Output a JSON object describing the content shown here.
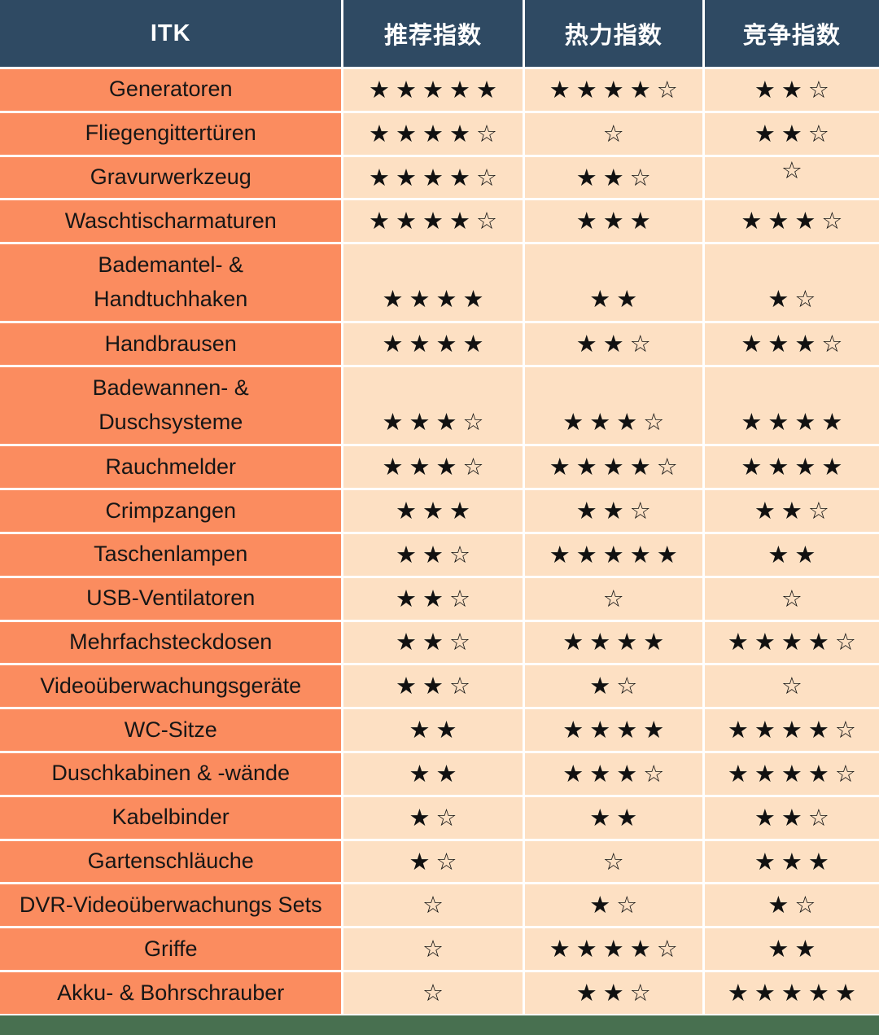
{
  "header": {
    "columns": [
      "ITK",
      "推荐指数",
      "热力指数",
      "竞争指数"
    ]
  },
  "colors": {
    "header_bg": "#2F4A63",
    "header_text": "#FFFFFF",
    "label_bg": "#FB8C5F",
    "label_text": "#161616",
    "cell_bg": "#FDE0C3",
    "star_color": "#111111",
    "footer_bar": "#487050",
    "grid_line": "#FFFFFF"
  },
  "star": {
    "filled_glyph": "★",
    "outline_glyph": "☆"
  },
  "rows": [
    {
      "label": "Generatoren",
      "cells": [
        {
          "filled": 5,
          "outline": 0
        },
        {
          "filled": 4,
          "outline": 1
        },
        {
          "filled": 2,
          "outline": 1
        }
      ]
    },
    {
      "label": "Fliegengittertüren",
      "cells": [
        {
          "filled": 4,
          "outline": 1
        },
        {
          "filled": 0,
          "outline": 1
        },
        {
          "filled": 2,
          "outline": 1
        }
      ]
    },
    {
      "label": "Gravurwerkzeug",
      "cells": [
        {
          "filled": 4,
          "outline": 1
        },
        {
          "filled": 2,
          "outline": 1
        },
        {
          "filled": 0,
          "outline": 1,
          "align": "top"
        }
      ]
    },
    {
      "label": "Waschtischarmaturen",
      "cells": [
        {
          "filled": 4,
          "outline": 1
        },
        {
          "filled": 3,
          "outline": 0
        },
        {
          "filled": 3,
          "outline": 1
        }
      ]
    },
    {
      "label": "Bademantel- &\nHandtuchhaken",
      "tall": true,
      "cells": [
        {
          "filled": 4,
          "outline": 0
        },
        {
          "filled": 2,
          "outline": 0
        },
        {
          "filled": 1,
          "outline": 1
        }
      ]
    },
    {
      "label": "Handbrausen",
      "cells": [
        {
          "filled": 4,
          "outline": 0
        },
        {
          "filled": 2,
          "outline": 1
        },
        {
          "filled": 3,
          "outline": 1
        }
      ]
    },
    {
      "label": "Badewannen- &\nDuschsysteme",
      "tall": true,
      "cells": [
        {
          "filled": 3,
          "outline": 1
        },
        {
          "filled": 3,
          "outline": 1
        },
        {
          "filled": 4,
          "outline": 0
        }
      ]
    },
    {
      "label": "Rauchmelder",
      "cells": [
        {
          "filled": 3,
          "outline": 1
        },
        {
          "filled": 4,
          "outline": 1
        },
        {
          "filled": 4,
          "outline": 0
        }
      ]
    },
    {
      "label": "Crimpzangen",
      "cells": [
        {
          "filled": 3,
          "outline": 0
        },
        {
          "filled": 2,
          "outline": 1
        },
        {
          "filled": 2,
          "outline": 1
        }
      ]
    },
    {
      "label": "Taschenlampen",
      "cells": [
        {
          "filled": 2,
          "outline": 1
        },
        {
          "filled": 5,
          "outline": 0
        },
        {
          "filled": 2,
          "outline": 0
        }
      ]
    },
    {
      "label": "USB-Ventilatoren",
      "cells": [
        {
          "filled": 2,
          "outline": 1
        },
        {
          "filled": 0,
          "outline": 1
        },
        {
          "filled": 0,
          "outline": 1
        }
      ]
    },
    {
      "label": "Mehrfachsteckdosen",
      "cells": [
        {
          "filled": 2,
          "outline": 1
        },
        {
          "filled": 4,
          "outline": 0
        },
        {
          "filled": 4,
          "outline": 1
        }
      ]
    },
    {
      "label": "Videoüberwachungsgeräte",
      "cells": [
        {
          "filled": 2,
          "outline": 1
        },
        {
          "filled": 1,
          "outline": 1
        },
        {
          "filled": 0,
          "outline": 1
        }
      ]
    },
    {
      "label": "WC-Sitze",
      "cells": [
        {
          "filled": 2,
          "outline": 0
        },
        {
          "filled": 4,
          "outline": 0
        },
        {
          "filled": 4,
          "outline": 1
        }
      ]
    },
    {
      "label": "Duschkabinen & -wände",
      "cells": [
        {
          "filled": 2,
          "outline": 0
        },
        {
          "filled": 3,
          "outline": 1
        },
        {
          "filled": 4,
          "outline": 1
        }
      ]
    },
    {
      "label": "Kabelbinder",
      "cells": [
        {
          "filled": 1,
          "outline": 1
        },
        {
          "filled": 2,
          "outline": 0
        },
        {
          "filled": 2,
          "outline": 1
        }
      ]
    },
    {
      "label": "Gartenschläuche",
      "cells": [
        {
          "filled": 1,
          "outline": 1
        },
        {
          "filled": 0,
          "outline": 1
        },
        {
          "filled": 3,
          "outline": 0
        }
      ]
    },
    {
      "label": "DVR-Videoüberwachungs Sets",
      "cells": [
        {
          "filled": 0,
          "outline": 1
        },
        {
          "filled": 1,
          "outline": 1
        },
        {
          "filled": 1,
          "outline": 1
        }
      ]
    },
    {
      "label": "Griffe",
      "cells": [
        {
          "filled": 0,
          "outline": 1
        },
        {
          "filled": 4,
          "outline": 1
        },
        {
          "filled": 2,
          "outline": 0
        }
      ]
    },
    {
      "label": "Akku- & Bohrschrauber",
      "cells": [
        {
          "filled": 0,
          "outline": 1
        },
        {
          "filled": 2,
          "outline": 1
        },
        {
          "filled": 5,
          "outline": 0
        }
      ]
    }
  ]
}
